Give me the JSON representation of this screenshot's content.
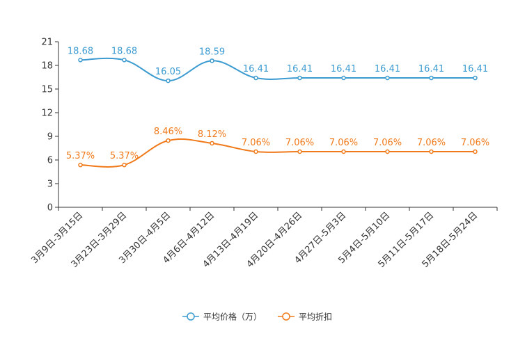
{
  "chart_data": {
    "type": "line",
    "title": "",
    "xlabel": "",
    "ylabel": "",
    "ylim": [
      0,
      21
    ],
    "yticks": [
      0,
      3,
      6,
      9,
      12,
      15,
      18,
      21
    ],
    "grid": false,
    "legend_position": "bottom-center",
    "categories": [
      "3月9日-3月15日",
      "3月23日-3月29日",
      "3月30日-4月5日",
      "4月6日-4月12日",
      "4月13日-4月19日",
      "4月20日-4月26日",
      "4月27日-5月3日",
      "5月4日-5月10日",
      "5月11日-5月17日",
      "5月18日-5月24日"
    ],
    "series": [
      {
        "name": "平均价格（万）",
        "color": "#3b9bd1",
        "values": [
          18.68,
          18.68,
          16.05,
          18.59,
          16.41,
          16.41,
          16.41,
          16.41,
          16.41,
          16.41
        ],
        "labels": [
          "18.68",
          "18.68",
          "16.05",
          "18.59",
          "16.41",
          "16.41",
          "16.41",
          "16.41",
          "16.41",
          "16.41"
        ]
      },
      {
        "name": "平均折扣",
        "color": "#f07a1a",
        "values": [
          5.37,
          5.37,
          8.46,
          8.12,
          7.06,
          7.06,
          7.06,
          7.06,
          7.06,
          7.06
        ],
        "labels": [
          "5.37%",
          "5.37%",
          "8.46%",
          "8.12%",
          "7.06%",
          "7.06%",
          "7.06%",
          "7.06%",
          "7.06%",
          "7.06%"
        ]
      }
    ]
  }
}
